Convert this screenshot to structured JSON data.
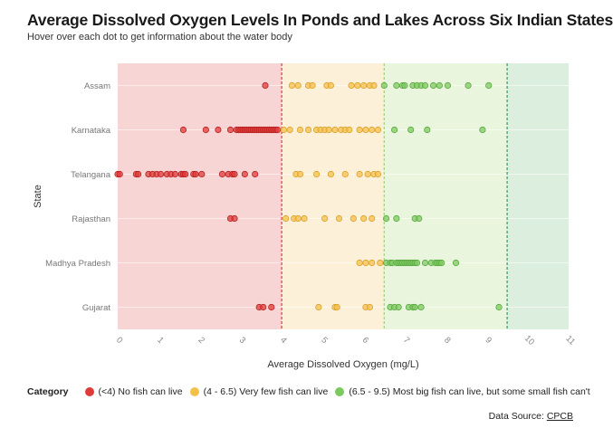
{
  "title": "Average Dissolved Oxygen Levels In Ponds and Lakes Across Six Indian States",
  "subtitle": "Hover over each dot to get information about the water body",
  "legend": {
    "title": "Category",
    "items": [
      {
        "label": "(<4) No fish can live",
        "color": "#e03a3a"
      },
      {
        "label": "(4 - 6.5) Very few fish can live",
        "color": "#f5c04a"
      },
      {
        "label": "(6.5 - 9.5) Most big fish can live, but some small fish can't",
        "color": "#7cc95e"
      }
    ]
  },
  "source": {
    "prefix": "Data Source: ",
    "link": "CPCB"
  },
  "chart_data": {
    "type": "scatter",
    "xlabel": "Average Dissolved Oxygen (mg/L)",
    "ylabel": "State",
    "xlim": [
      0,
      11
    ],
    "x_ticks": [
      "0",
      "1",
      "2",
      "3",
      "4",
      "5",
      "6",
      "7",
      "8",
      "9",
      "10",
      "11"
    ],
    "categories": [
      "Assam",
      "Karnataka",
      "Telangana",
      "Rajasthan",
      "Madhya Pradesh",
      "Gujarat"
    ],
    "bands": [
      {
        "from": 0,
        "to": 4,
        "color": "#f7d5d5"
      },
      {
        "from": 4,
        "to": 6.5,
        "color": "#fdf0d9"
      },
      {
        "from": 6.5,
        "to": 9.5,
        "color": "#e9f5dc"
      },
      {
        "from": 9.5,
        "to": 11,
        "color": "#dcefdf"
      }
    ],
    "thresholds": [
      {
        "x": 4,
        "color": "#e03a3a"
      },
      {
        "x": 6.5,
        "color": "#9fd27d"
      },
      {
        "x": 9.5,
        "color": "#3a9a5a"
      }
    ],
    "series": [
      {
        "category": "Assam",
        "values": [
          3.6,
          4.25,
          4.4,
          4.65,
          4.75,
          5.1,
          5.2,
          5.7,
          5.85,
          6.0,
          6.15,
          6.25,
          6.5,
          6.8,
          6.95,
          7.0,
          7.2,
          7.3,
          7.4,
          7.5,
          7.7,
          7.85,
          8.05,
          8.55,
          9.05
        ]
      },
      {
        "category": "Karnataka",
        "values": [
          1.6,
          2.15,
          2.45,
          2.75,
          2.9,
          2.95,
          3.0,
          3.05,
          3.1,
          3.15,
          3.2,
          3.25,
          3.3,
          3.35,
          3.4,
          3.45,
          3.5,
          3.55,
          3.6,
          3.65,
          3.7,
          3.75,
          3.8,
          3.85,
          3.9,
          4.05,
          4.2,
          4.45,
          4.65,
          4.85,
          4.95,
          5.05,
          5.15,
          5.3,
          5.45,
          5.55,
          5.65,
          5.9,
          6.05,
          6.2,
          6.35,
          6.75,
          7.15,
          7.55,
          8.9
        ]
      },
      {
        "category": "Telangana",
        "values": [
          0.0,
          0.05,
          0.45,
          0.5,
          0.75,
          0.85,
          0.95,
          1.05,
          1.2,
          1.3,
          1.4,
          1.55,
          1.6,
          1.65,
          1.85,
          1.9,
          2.05,
          2.55,
          2.7,
          2.8,
          2.85,
          3.1,
          3.35,
          4.35,
          4.45,
          4.85,
          5.2,
          5.55,
          5.9,
          6.1,
          6.25,
          6.35
        ]
      },
      {
        "category": "Rajasthan",
        "values": [
          2.75,
          2.85,
          4.1,
          4.3,
          4.4,
          4.55,
          5.05,
          5.4,
          5.75,
          6.0,
          6.2,
          6.55,
          6.8,
          7.25,
          7.35
        ]
      },
      {
        "category": "Madhya Pradesh",
        "values": [
          5.9,
          6.05,
          6.2,
          6.4,
          6.55,
          6.65,
          6.7,
          6.8,
          6.85,
          6.9,
          6.95,
          7.0,
          7.05,
          7.1,
          7.15,
          7.2,
          7.25,
          7.3,
          7.5,
          7.65,
          7.75,
          7.8,
          7.85,
          7.9,
          8.25
        ]
      },
      {
        "category": "Gujarat",
        "values": [
          3.45,
          3.55,
          3.75,
          4.9,
          5.3,
          5.35,
          6.05,
          6.15,
          6.65,
          6.75,
          6.85,
          7.1,
          7.2,
          7.25,
          7.4,
          9.3
        ]
      }
    ]
  }
}
